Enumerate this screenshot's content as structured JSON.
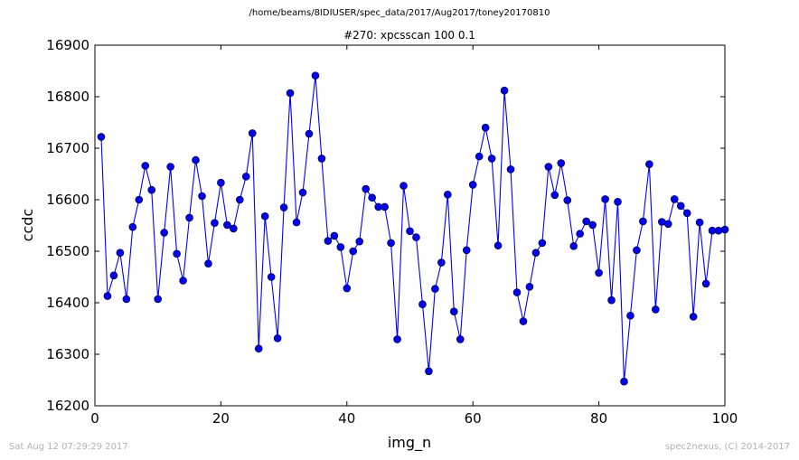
{
  "suptitle": "/home/beams/8IDIUSER/spec_data/2017/Aug2017/toney20170810",
  "footer": {
    "timestamp": "Sat Aug 12 07:29:29 2017",
    "credit": "spec2nexus, (C) 2014-2017"
  },
  "chart_data": {
    "type": "line",
    "title": "#270: xpcsscan 100 0.1",
    "xlabel": "img_n",
    "ylabel": "ccdc",
    "xlim": [
      0,
      100
    ],
    "ylim": [
      16200,
      16900
    ],
    "xticks": [
      0,
      20,
      40,
      60,
      80,
      100
    ],
    "yticks": [
      16200,
      16300,
      16400,
      16500,
      16600,
      16700,
      16800,
      16900
    ],
    "grid": false,
    "marker": "circle",
    "color": "#0000ff",
    "series": [
      {
        "x": [
          1,
          2,
          3,
          4,
          5,
          6,
          7,
          8,
          9,
          10,
          11,
          12,
          13,
          14,
          15,
          16,
          17,
          18,
          19,
          20,
          21,
          22,
          23,
          24,
          25,
          26,
          27,
          28,
          29,
          30,
          31,
          32,
          33,
          34,
          35,
          36,
          37,
          38,
          39,
          40,
          41,
          42,
          43,
          44,
          45,
          46,
          47,
          48,
          49,
          50,
          51,
          52,
          53,
          54,
          55,
          56,
          57,
          58,
          59,
          60,
          61,
          62,
          63,
          64,
          65,
          66,
          67,
          68,
          69,
          70,
          71,
          72,
          73,
          74,
          75,
          76,
          77,
          78,
          79,
          80,
          81,
          82,
          83,
          84,
          85,
          86,
          87,
          88,
          89,
          90,
          91,
          92,
          93,
          94,
          95,
          96,
          97,
          98,
          99,
          100
        ],
        "values": [
          16722,
          16413,
          16453,
          16497,
          16407,
          16547,
          16600,
          16666,
          16619,
          16407,
          16536,
          16664,
          16495,
          16443,
          16565,
          16677,
          16607,
          16476,
          16555,
          16633,
          16551,
          16544,
          16600,
          16645,
          16729,
          16311,
          16568,
          16450,
          16331,
          16585,
          16807,
          16556,
          16614,
          16728,
          16841,
          16680,
          16520,
          16530,
          16508,
          16428,
          16500,
          16519,
          16621,
          16604,
          16586,
          16586,
          16516,
          16329,
          16627,
          16539,
          16527,
          16397,
          16267,
          16427,
          16478,
          16610,
          16383,
          16329,
          16502,
          16629,
          16684,
          16740,
          16680,
          16511,
          16812,
          16659,
          16420,
          16364,
          16431,
          16497,
          16516,
          16664,
          16609,
          16671,
          16599,
          16510,
          16534,
          16558,
          16551,
          16458,
          16601,
          16405,
          16596,
          16247,
          16375,
          16502,
          16558,
          16669,
          16387,
          16557,
          16553,
          16601,
          16588,
          16574,
          16373,
          16556,
          16437,
          16540,
          16540,
          16542
        ]
      }
    ]
  }
}
